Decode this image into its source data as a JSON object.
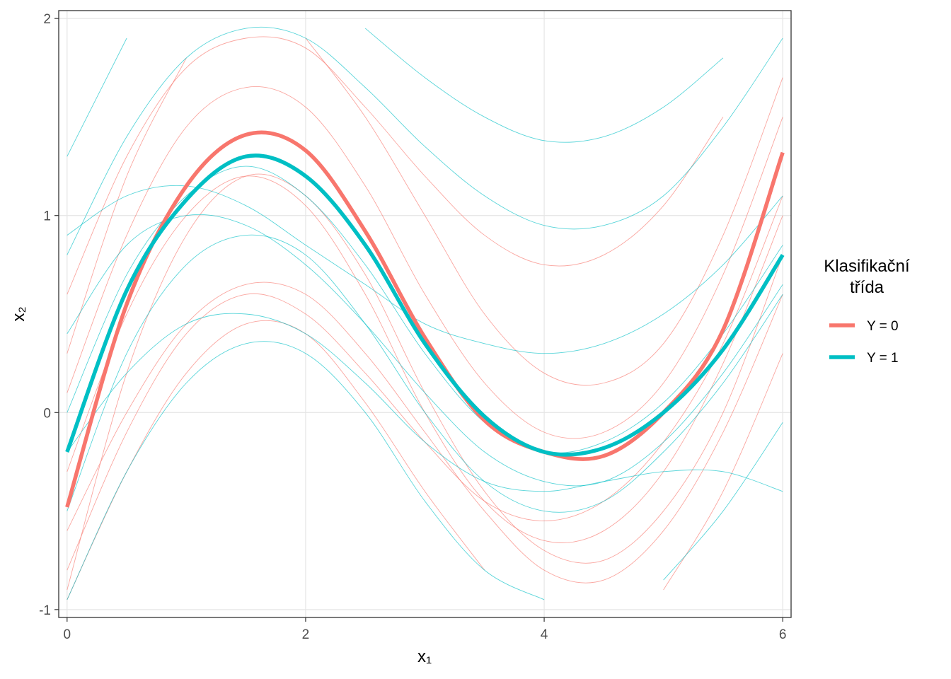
{
  "chart_data": {
    "type": "line",
    "xlabel": "x₁",
    "ylabel": "x₂",
    "legend_title": "Klasifikační třída",
    "x": [
      0,
      0.5,
      1,
      1.5,
      2,
      2.5,
      3,
      3.5,
      4,
      4.5,
      5,
      5.5,
      6
    ],
    "xlim": [
      -0.07,
      6.07
    ],
    "xticks": [
      0,
      2,
      4,
      6
    ],
    "ylim": [
      -1.04,
      2.04
    ],
    "yticks": [
      -1,
      0,
      1,
      2
    ],
    "grid": true,
    "legend": "right",
    "series": [
      {
        "color": "#F8766D",
        "values": [
          -0.9,
          0.2,
          0.9,
          1.2,
          1.1,
          0.7,
          0.1,
          -0.4,
          -0.7,
          -0.75,
          -0.5,
          0.0,
          0.8
        ]
      },
      {
        "color": "#F8766D",
        "values": [
          0.3,
          1.2,
          1.8,
          null,
          1.9,
          1.5,
          1.0,
          0.5,
          0.2,
          0.15,
          0.35,
          0.9,
          1.7
        ]
      },
      {
        "color": "#F8766D",
        "values": [
          -0.6,
          0.0,
          0.45,
          0.65,
          0.6,
          0.3,
          -0.1,
          -0.5,
          -0.8,
          -0.85,
          -0.6,
          -0.1,
          0.6
        ]
      },
      {
        "color": "#F8766D",
        "values": [
          0.1,
          0.9,
          1.45,
          1.65,
          1.55,
          1.15,
          0.6,
          0.15,
          -0.1,
          -0.1,
          0.15,
          0.7,
          1.5
        ]
      },
      {
        "color": "#F8766D",
        "values": [
          -0.95,
          -0.3,
          0.2,
          0.45,
          0.4,
          0.05,
          -0.4,
          -0.8,
          null,
          null,
          -0.9,
          -0.4,
          0.3
        ]
      },
      {
        "color": "#F8766D",
        "values": [
          0.6,
          1.3,
          1.75,
          1.9,
          1.85,
          1.55,
          1.2,
          0.9,
          0.75,
          0.8,
          1.05,
          1.5,
          null
        ]
      },
      {
        "color": "#F8766D",
        "values": [
          -0.3,
          0.5,
          1.0,
          1.2,
          1.05,
          0.6,
          0.0,
          -0.45,
          -0.65,
          -0.6,
          -0.3,
          0.25,
          1.0
        ]
      },
      {
        "color": "#F8766D",
        "values": [
          -0.8,
          -0.1,
          0.4,
          0.6,
          0.5,
          0.2,
          -0.15,
          -0.45,
          -0.55,
          -0.45,
          -0.15,
          0.35,
          1.1
        ]
      },
      {
        "color": "#00BFC4",
        "values": [
          0.0,
          0.7,
          1.1,
          1.25,
          1.1,
          0.75,
          0.3,
          -0.05,
          -0.2,
          -0.15,
          0.05,
          0.4,
          0.85
        ]
      },
      {
        "color": "#00BFC4",
        "values": [
          -0.95,
          -0.3,
          0.15,
          0.35,
          0.3,
          0.0,
          -0.45,
          -0.8,
          -0.95,
          null,
          -0.85,
          -0.5,
          -0.05
        ]
      },
      {
        "color": "#00BFC4",
        "values": [
          0.8,
          1.4,
          1.8,
          1.95,
          1.9,
          1.65,
          1.35,
          1.1,
          0.95,
          0.95,
          1.1,
          1.45,
          1.9
        ]
      },
      {
        "color": "#00BFC4",
        "values": [
          -0.5,
          0.3,
          0.75,
          0.9,
          0.8,
          0.45,
          0.0,
          -0.35,
          -0.5,
          -0.45,
          -0.2,
          0.15,
          0.6
        ]
      },
      {
        "color": "#00BFC4",
        "values": [
          1.3,
          1.9,
          null,
          null,
          null,
          1.95,
          1.7,
          1.5,
          1.38,
          1.4,
          1.55,
          1.8,
          null
        ]
      },
      {
        "color": "#00BFC4",
        "values": [
          0.4,
          0.85,
          1.0,
          0.95,
          0.75,
          0.45,
          0.1,
          -0.2,
          -0.35,
          -0.35,
          -0.15,
          0.2,
          0.65
        ]
      },
      {
        "color": "#00BFC4",
        "values": [
          -0.2,
          0.2,
          0.45,
          0.5,
          0.4,
          0.15,
          -0.15,
          -0.35,
          -0.4,
          -0.35,
          -0.3,
          -0.3,
          -0.4
        ]
      },
      {
        "color": "#00BFC4",
        "values": [
          0.9,
          1.1,
          1.15,
          1.05,
          0.85,
          0.65,
          0.45,
          0.35,
          0.3,
          0.35,
          0.5,
          0.75,
          1.1
        ]
      },
      {
        "name": "Y = 0",
        "color": "#F8766D",
        "values": [
          -0.48,
          0.55,
          1.15,
          1.41,
          1.33,
          0.92,
          0.38,
          -0.04,
          -0.2,
          -0.22,
          0.0,
          0.42,
          1.32
        ]
      },
      {
        "name": "Y = 1",
        "color": "#00BFC4",
        "values": [
          -0.2,
          0.62,
          1.08,
          1.3,
          1.2,
          0.85,
          0.35,
          -0.02,
          -0.2,
          -0.18,
          0.0,
          0.32,
          0.8
        ]
      }
    ]
  }
}
